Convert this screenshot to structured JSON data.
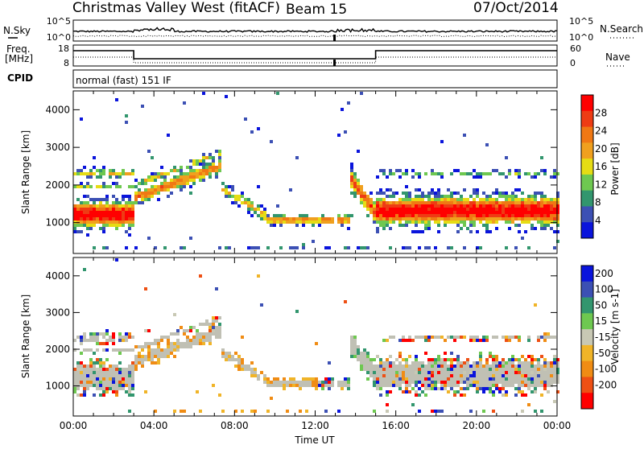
{
  "header": {
    "station": "Christmas Valley West (fitACF)",
    "beam": "Beam 15",
    "date": "07/Oct/2014"
  },
  "strips": {
    "nsky_label": "N.Sky",
    "nsearch_label": "N.Search",
    "noise_ticks": [
      "10^5",
      "10^0"
    ],
    "freq_label_1": "Freq.",
    "freq_label_2": "[MHz]",
    "freq_ticks": [
      "18",
      "8"
    ],
    "nave_label": "Nave",
    "nave_ticks": [
      "60",
      "0"
    ],
    "cpid_label": "CPID",
    "cpid_text": "normal (fast) 151 IF"
  },
  "colors": {
    "power": [
      "#0a14dc",
      "#3c50b4",
      "#32966e",
      "#6ec850",
      "#e6dc14",
      "#f0a01e",
      "#f07814",
      "#ee3c14",
      "#ff0000"
    ],
    "velocity": [
      "#0a14dc",
      "#3c50b4",
      "#32966e",
      "#6ec850",
      "#c8c8b4",
      "#f0b428",
      "#f08c14",
      "#ee5014",
      "#ff0000"
    ],
    "gray": "#c0c0b4"
  },
  "chart_data": [
    {
      "type": "heatmap",
      "parameter": "power",
      "ylabel": "Slant Range [km]",
      "x_range_hours": [
        0,
        24
      ],
      "y_range_km": [
        180,
        4500
      ],
      "y_ticks": [
        "1000",
        "2000",
        "3000",
        "4000"
      ],
      "colorbar_label": "Power [dB]",
      "colorbar_ticks": [
        "4",
        "8",
        "12",
        "16",
        "20",
        "24",
        "28"
      ],
      "colorbar_range": [
        0,
        32
      ]
    },
    {
      "type": "heatmap",
      "parameter": "velocity",
      "ylabel": "Slant Range [km]",
      "xlabel": "Time UT",
      "x_ticks": [
        "00:00",
        "04:00",
        "08:00",
        "12:00",
        "16:00",
        "20:00",
        "00:00"
      ],
      "x_range_hours": [
        0,
        24
      ],
      "y_range_km": [
        180,
        4500
      ],
      "y_ticks": [
        "1000",
        "2000",
        "3000",
        "4000"
      ],
      "colorbar_label": "Velocity [m s-1]",
      "colorbar_ticks": [
        "200",
        "100",
        "50",
        "15",
        "-15",
        "-50",
        "-100",
        "-200"
      ]
    }
  ]
}
